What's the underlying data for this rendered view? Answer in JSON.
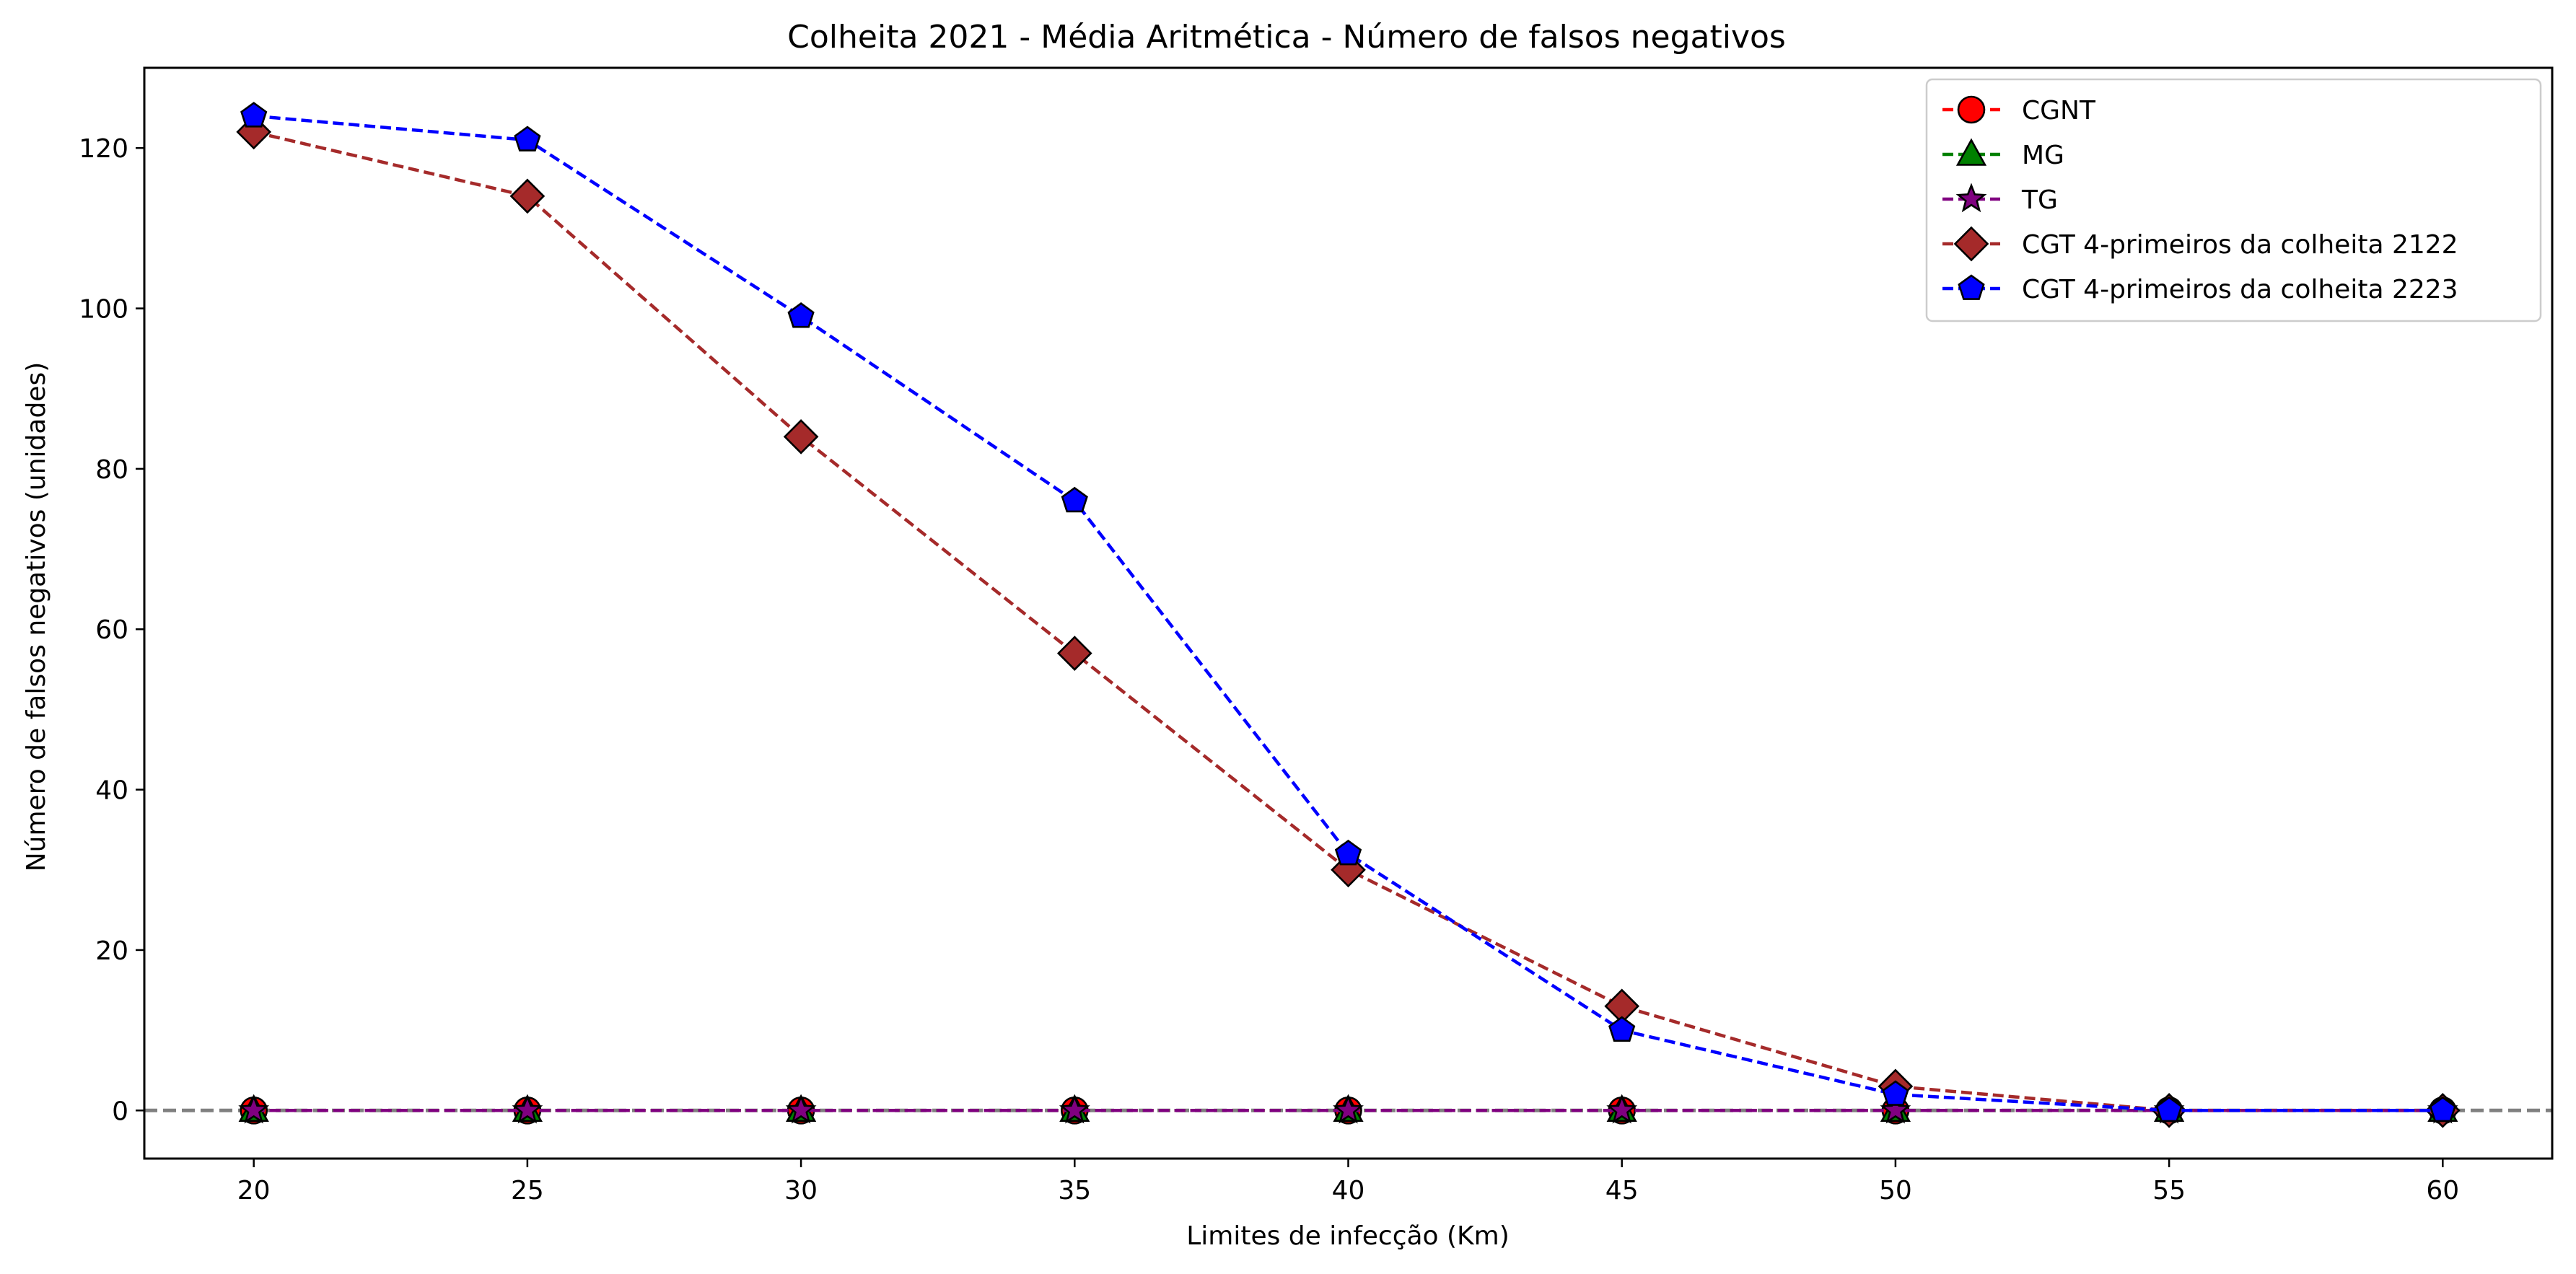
{
  "chart_data": {
    "type": "line",
    "title": "Colheita 2021 - Média Aritmética - Número de falsos negativos",
    "xlabel": "Limites de infecção (Km)",
    "ylabel": "Número de falsos negativos (unidades)",
    "x": [
      20,
      25,
      30,
      35,
      40,
      45,
      50,
      55,
      60
    ],
    "xticks": [
      20,
      25,
      30,
      35,
      40,
      45,
      50,
      55,
      60
    ],
    "yticks": [
      0,
      20,
      40,
      60,
      80,
      100,
      120
    ],
    "xlim": [
      18,
      62
    ],
    "ylim": [
      -6,
      130
    ],
    "reference_line": {
      "y": 0,
      "style": "dashed",
      "color": "#808080"
    },
    "legend_position": "top-right",
    "grid": false,
    "series": [
      {
        "name": "CGNT",
        "marker": "circle",
        "line_color": "#ff0000",
        "face_color": "#ff0000",
        "values": [
          0,
          0,
          0,
          0,
          0,
          0,
          0,
          0,
          0
        ]
      },
      {
        "name": "MG",
        "marker": "triangle",
        "line_color": "#008000",
        "face_color": "#008000",
        "values": [
          0,
          0,
          0,
          0,
          0,
          0,
          0,
          0,
          0
        ]
      },
      {
        "name": "TG",
        "marker": "star",
        "line_color": "#800080",
        "face_color": "#800080",
        "values": [
          0,
          0,
          0,
          0,
          0,
          0,
          0,
          0,
          0
        ]
      },
      {
        "name": "CGT 4-primeiros da colheita 2122",
        "marker": "diamond",
        "line_color": "#a52a2a",
        "face_color": "#a52a2a",
        "values": [
          122,
          114,
          84,
          57,
          30,
          13,
          3,
          0,
          0
        ]
      },
      {
        "name": "CGT 4-primeiros da colheita 2223",
        "marker": "pentagon",
        "line_color": "#0000ff",
        "face_color": "#0000ff",
        "values": [
          124,
          121,
          99,
          76,
          32,
          10,
          2,
          0,
          0
        ]
      }
    ]
  }
}
